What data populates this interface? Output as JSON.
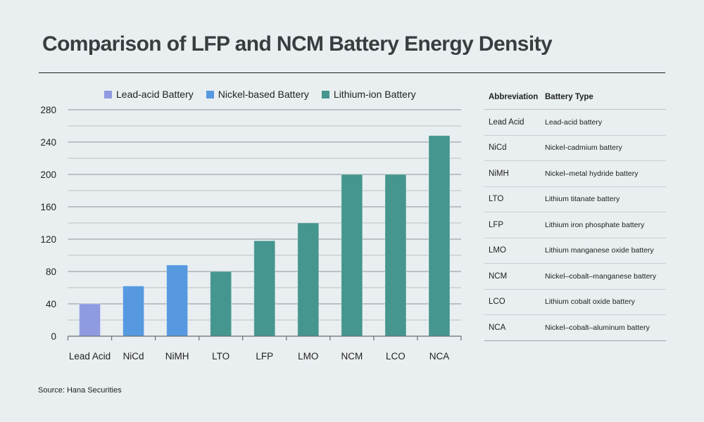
{
  "title": "Comparison of LFP and NCM Battery Energy Density",
  "source": "Source: Hana Securities",
  "colors": {
    "lead_acid": "#8f9be0",
    "nickel": "#5699e0",
    "lithium": "#44968e",
    "grid_major": "#9ea4a9",
    "grid_minor": "#c4c9cd",
    "axis": "#6b6f73"
  },
  "chart_data": {
    "type": "bar",
    "title": "Comparison of LFP and NCM Battery Energy Density",
    "xlabel": "",
    "ylabel": "",
    "categories": [
      "Lead Acid",
      "NiCd",
      "NiMH",
      "LTO",
      "LFP",
      "LMO",
      "NCM",
      "LCO",
      "NCA"
    ],
    "values": [
      40,
      62,
      88,
      80,
      118,
      140,
      200,
      200,
      248
    ],
    "groups": [
      "Lead-acid Battery",
      "Nickel-based Battery",
      "Nickel-based Battery",
      "Lithium-ion Battery",
      "Lithium-ion Battery",
      "Lithium-ion Battery",
      "Lithium-ion Battery",
      "Lithium-ion Battery",
      "Lithium-ion Battery"
    ],
    "legend": [
      "Lead-acid Battery",
      "Nickel-based Battery",
      "Lithium-ion Battery"
    ],
    "legend_position": "top-center",
    "ylim": [
      0,
      280
    ],
    "yticks": [
      0,
      40,
      80,
      120,
      160,
      200,
      240,
      280
    ],
    "minor_gridlines_every": 20,
    "grid": true
  },
  "table": {
    "headers": [
      "Abbreviation",
      "Battery Type"
    ],
    "rows": [
      [
        "Lead Acid",
        "Lead-acid battery"
      ],
      [
        "NiCd",
        "Nickel-cadmium battery"
      ],
      [
        "NiMH",
        "Nickel–metal hydride battery"
      ],
      [
        "LTO",
        "Lithium titanate battery"
      ],
      [
        "LFP",
        "Lithium iron phosphate battery"
      ],
      [
        "LMO",
        "Lithium manganese oxide battery"
      ],
      [
        "NCM",
        "Nickel–cobalt–manganese battery"
      ],
      [
        "LCO",
        "Lithium cobalt oxide battery"
      ],
      [
        "NCA",
        "Nickel–cobalt–aluminum battery"
      ]
    ]
  }
}
